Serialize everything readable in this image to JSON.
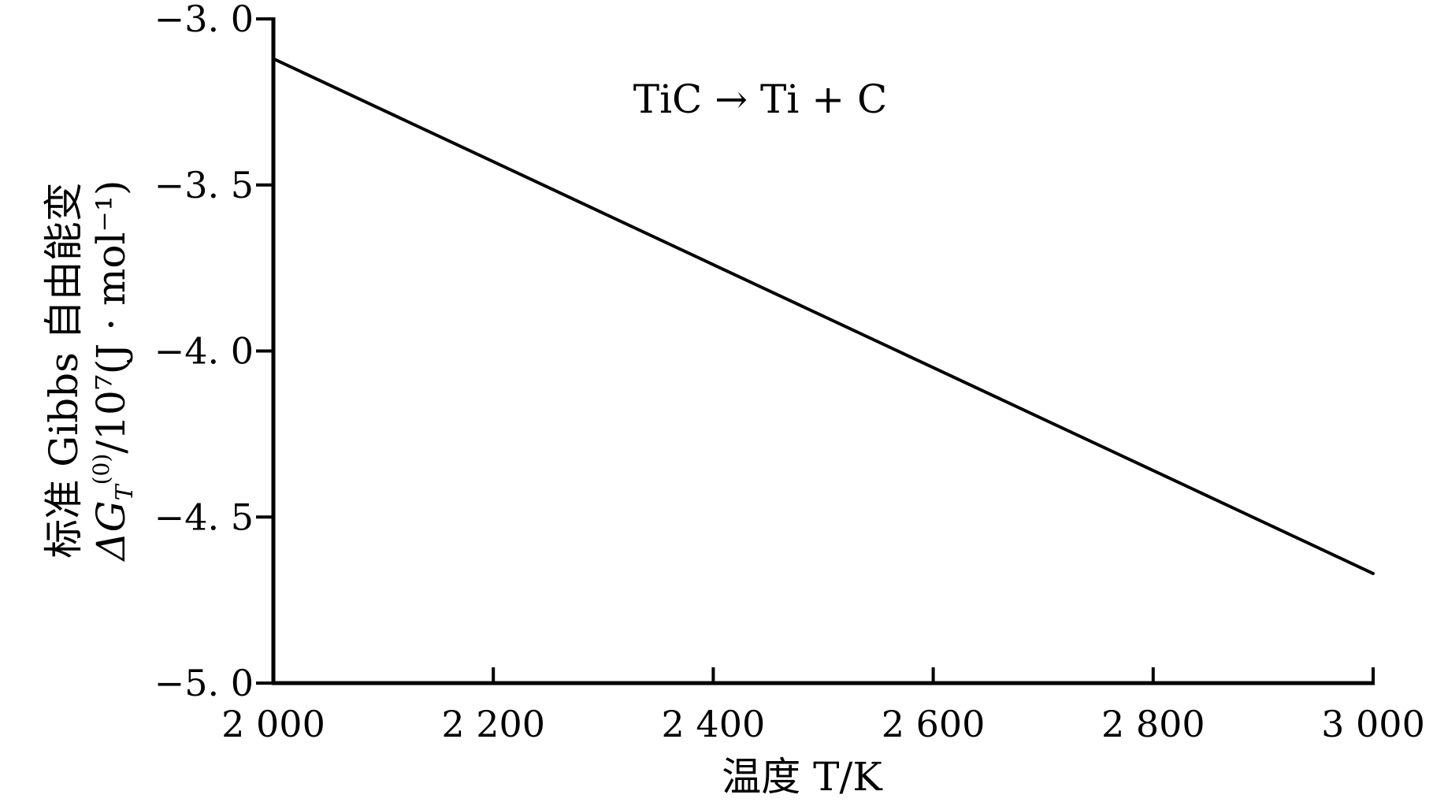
{
  "chart_data": {
    "type": "line",
    "xlabel": "温度 T/K",
    "ylabel_line1": "标准 Gibbs 自由能变",
    "ylabel_line2": "ΔG",
    "ylabel_sub": "T",
    "ylabel_sup": "(0)",
    "ylabel_units": "/10⁷(J · mol⁻¹)",
    "annotation": "TiC → Ti + C",
    "xlim": [
      2000,
      3000
    ],
    "ylim": [
      -5.0,
      -3.0
    ],
    "x_ticks": [
      2000,
      2200,
      2400,
      2600,
      2800,
      3000
    ],
    "x_tick_labels": [
      "2 000",
      "2 200",
      "2 400",
      "2 600",
      "2 800",
      "3 000"
    ],
    "y_ticks": [
      -3.0,
      -3.5,
      -4.0,
      -4.5,
      -5.0
    ],
    "y_tick_labels": [
      "−3. 0",
      "−3. 5",
      "−4. 0",
      "−4. 5",
      "−5. 0"
    ],
    "grid": false,
    "series": [
      {
        "x": [
          2000,
          2200,
          2400,
          2600,
          2800,
          3000
        ],
        "y": [
          -3.12,
          -3.43,
          -3.74,
          -4.05,
          -4.36,
          -4.67
        ],
        "color": "#000000"
      }
    ]
  }
}
